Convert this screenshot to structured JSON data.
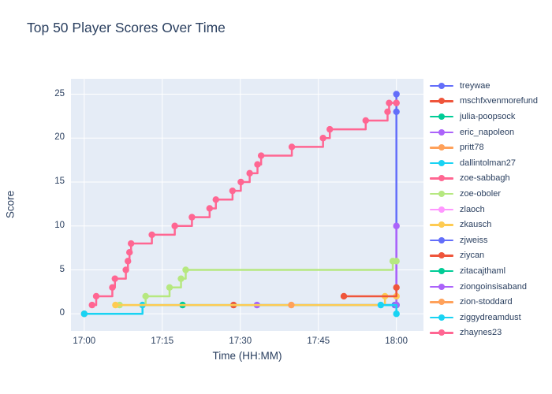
{
  "title": "Top 50 Player Scores Over Time",
  "chart_data": {
    "type": "line",
    "line_shape": "hv",
    "title": "Top 50 Player Scores Over Time",
    "xlabel": "Time (HH:MM)",
    "ylabel": "Score",
    "grid": true,
    "legend_position": "right",
    "plot_bg_color": "#E5ECF6",
    "grid_color": "#FFFFFF",
    "text_color": "#2a3f5f",
    "x_unit": "minutes after 17:00",
    "x_range_minutes": [
      -2.55,
      65.2
    ],
    "ylim": [
      -1.95,
      26.75
    ],
    "x_ticks": [
      {
        "label": "17:00",
        "m": 0
      },
      {
        "label": "17:15",
        "m": 15
      },
      {
        "label": "17:30",
        "m": 30
      },
      {
        "label": "17:45",
        "m": 45
      },
      {
        "label": "18:00",
        "m": 60
      }
    ],
    "y_ticks": [
      {
        "label": "0",
        "v": 0
      },
      {
        "label": "5",
        "v": 5
      },
      {
        "label": "10",
        "v": 10
      },
      {
        "label": "15",
        "v": 15
      },
      {
        "label": "20",
        "v": 20
      },
      {
        "label": "25",
        "v": 25
      }
    ],
    "series": [
      {
        "name": "treywae",
        "color": "#636EFA",
        "points": [
          [
            59.7,
            1
          ],
          [
            60,
            25
          ]
        ]
      },
      {
        "name": "mschfxvenmorefund",
        "color": "#EF553B",
        "points": [
          [
            28.7,
            1
          ]
        ]
      },
      {
        "name": "julia-poopsock",
        "color": "#00CC96",
        "points": [
          [
            18.9,
            1
          ]
        ]
      },
      {
        "name": "eric_napoleon",
        "color": "#AB63FA",
        "points": [
          [
            33.2,
            1
          ],
          [
            60,
            10
          ]
        ]
      },
      {
        "name": "pritt78",
        "color": "#FFA15A",
        "points": [
          [
            0,
            0
          ]
        ]
      },
      {
        "name": "dallintolman27",
        "color": "#19D3F3",
        "points": [
          [
            0,
            0
          ],
          [
            11.2,
            1
          ],
          [
            60,
            1
          ]
        ]
      },
      {
        "name": "zoe-sabbagh",
        "color": "#FF6692",
        "points": [
          [
            1.5,
            1
          ],
          [
            2.3,
            2
          ],
          [
            5.4,
            3
          ],
          [
            5.9,
            4
          ],
          [
            8,
            5
          ],
          [
            8.4,
            6
          ],
          [
            8.7,
            7
          ],
          [
            9,
            8
          ],
          [
            13,
            9
          ],
          [
            17.4,
            10
          ],
          [
            20.7,
            11
          ],
          [
            24.1,
            12
          ],
          [
            25.3,
            13
          ],
          [
            28.5,
            14
          ],
          [
            30.1,
            15
          ],
          [
            31.8,
            16
          ],
          [
            33.3,
            17
          ],
          [
            34,
            18
          ],
          [
            39.9,
            19
          ],
          [
            45.9,
            20
          ],
          [
            47.2,
            21
          ],
          [
            54.1,
            22
          ],
          [
            58.3,
            23
          ],
          [
            58.6,
            24
          ],
          [
            60,
            24
          ]
        ]
      },
      {
        "name": "zoe-oboler",
        "color": "#B6E880",
        "points": [
          [
            6.8,
            1
          ],
          [
            11.8,
            2
          ],
          [
            16.4,
            3
          ],
          [
            18.6,
            4
          ],
          [
            19.5,
            5
          ],
          [
            59.3,
            6
          ],
          [
            60,
            6
          ]
        ]
      },
      {
        "name": "zlaoch",
        "color": "#FF97FF",
        "points": [
          [
            60,
            2
          ]
        ]
      },
      {
        "name": "zkausch",
        "color": "#FECB52",
        "points": [
          [
            6,
            1
          ],
          [
            57.8,
            2
          ],
          [
            60,
            2
          ]
        ]
      },
      {
        "name": "zjweiss",
        "color": "#636EFA",
        "points": [
          [
            60,
            23
          ]
        ]
      },
      {
        "name": "ziycan",
        "color": "#EF553B",
        "points": [
          [
            49.9,
            2
          ],
          [
            60,
            3
          ]
        ]
      },
      {
        "name": "zitacajthaml",
        "color": "#00CC96",
        "points": [
          [
            60,
            1
          ]
        ]
      },
      {
        "name": "ziongoinsisaband",
        "color": "#AB63FA",
        "points": [
          [
            60,
            1
          ]
        ]
      },
      {
        "name": "zion-stoddard",
        "color": "#FFA15A",
        "points": [
          [
            39.8,
            1
          ]
        ]
      },
      {
        "name": "ziggydreamdust",
        "color": "#19D3F3",
        "points": [
          [
            57,
            1
          ],
          [
            60,
            0
          ]
        ]
      },
      {
        "name": "zhaynes23",
        "color": "#FF6692",
        "points": [
          [
            60,
            24
          ]
        ]
      }
    ]
  }
}
